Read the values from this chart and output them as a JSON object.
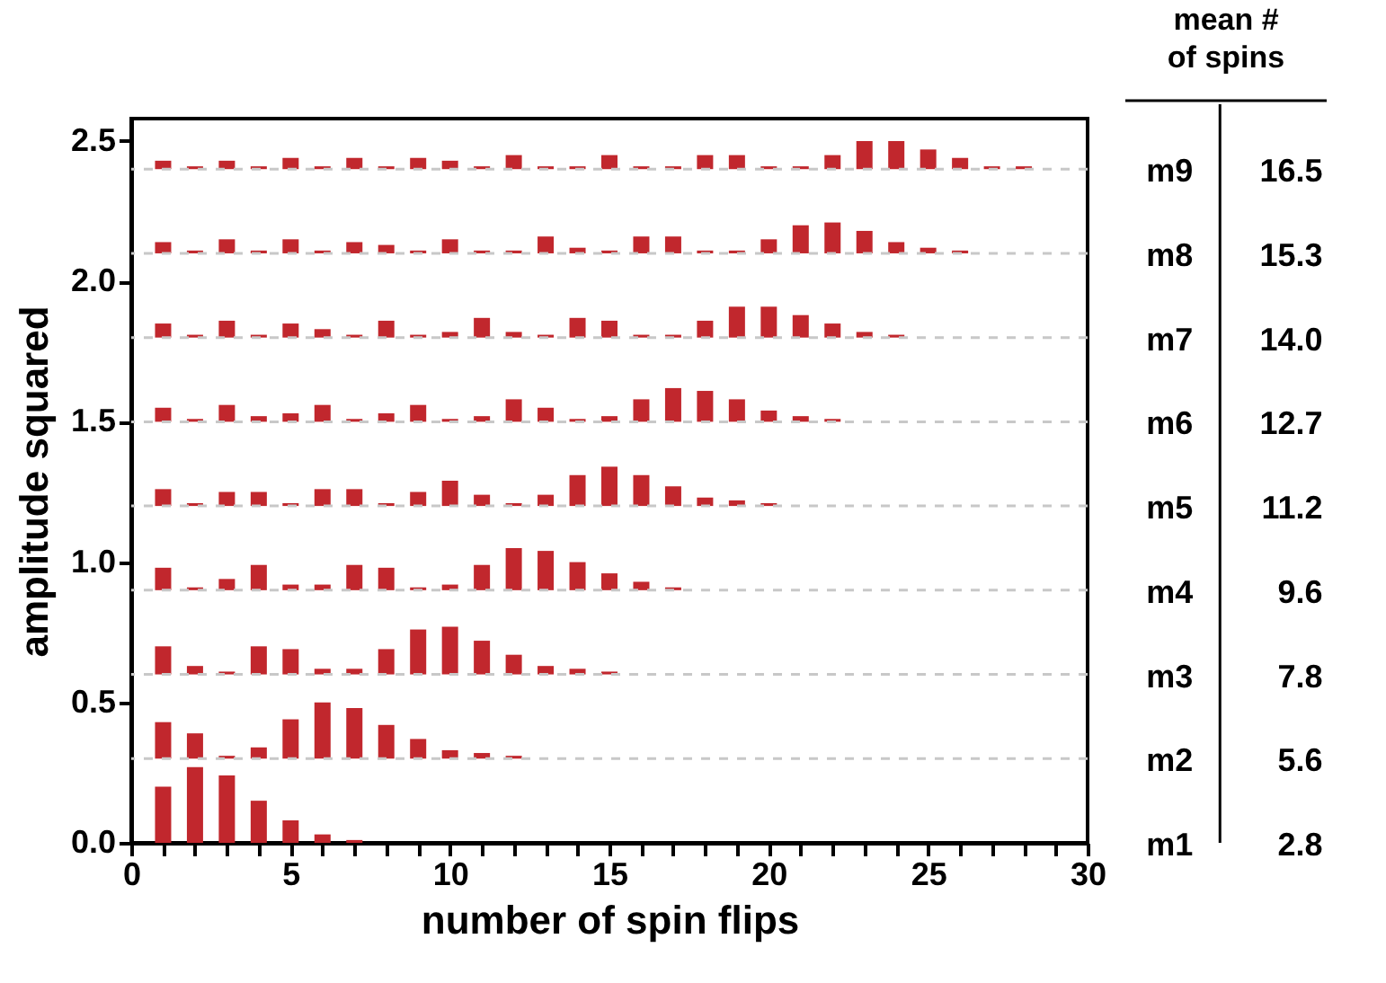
{
  "chart_data": {
    "type": "bar",
    "xlabel": "number of spin flips",
    "ylabel": "amplitude squared",
    "xlim": [
      0,
      30
    ],
    "xticks": [
      0,
      {
        "value": 1,
        "label": null
      },
      {
        "value": 2,
        "label": null
      },
      {
        "value": 3,
        "label": null
      },
      {
        "value": 4,
        "label": null
      },
      5,
      {
        "value": 6,
        "label": null
      },
      {
        "value": 7,
        "label": null
      },
      {
        "value": 8,
        "label": null
      },
      {
        "value": 9,
        "label": null
      },
      10,
      {
        "value": 11,
        "label": null
      },
      {
        "value": 12,
        "label": null
      },
      {
        "value": 13,
        "label": null
      },
      {
        "value": 14,
        "label": null
      },
      15,
      {
        "value": 16,
        "label": null
      },
      {
        "value": 17,
        "label": null
      },
      {
        "value": 18,
        "label": null
      },
      {
        "value": 19,
        "label": null
      },
      20,
      {
        "value": 21,
        "label": null
      },
      {
        "value": 22,
        "label": null
      },
      {
        "value": 23,
        "label": null
      },
      {
        "value": 24,
        "label": null
      },
      25,
      {
        "value": 26,
        "label": null
      },
      {
        "value": 27,
        "label": null
      },
      {
        "value": 28,
        "label": null
      },
      {
        "value": 29,
        "label": null
      },
      30
    ],
    "ylim": [
      0,
      2.58
    ],
    "yticks": [
      {
        "value": 0,
        "label": "0.0"
      },
      0.5,
      {
        "value": 1,
        "label": "1.0"
      },
      1.5,
      {
        "value": 2,
        "label": "2.0"
      },
      2.5
    ],
    "series": [
      {
        "name": "m1",
        "color": "#c1272d",
        "x": [
          1,
          2,
          3,
          4,
          5,
          6,
          7
        ],
        "base": [
          0,
          0,
          0,
          0,
          0,
          0,
          0
        ],
        "values": [
          0.2,
          0.27,
          0.24,
          0.15,
          0.08,
          0.03,
          0.01
        ]
      },
      {
        "name": "m2",
        "color": "#c1272d",
        "x": [
          1,
          2,
          3,
          4,
          5,
          6,
          7,
          8,
          9,
          10,
          11,
          12
        ],
        "base": [
          0.3,
          0.3,
          0.3,
          0.3,
          0.3,
          0.3,
          0.3,
          0.3,
          0.3,
          0.3,
          0.3,
          0.3
        ],
        "values": [
          0.13,
          0.09,
          0.01,
          0.04,
          0.14,
          0.2,
          0.18,
          0.12,
          0.07,
          0.03,
          0.02,
          0.01
        ]
      },
      {
        "name": "m3",
        "color": "#c1272d",
        "x": [
          1,
          2,
          3,
          4,
          5,
          6,
          7,
          8,
          9,
          10,
          11,
          12,
          13,
          14,
          15
        ],
        "base": [
          0.6,
          0.6,
          0.6,
          0.6,
          0.6,
          0.6,
          0.6,
          0.6,
          0.6,
          0.6,
          0.6,
          0.6,
          0.6,
          0.6,
          0.6
        ],
        "values": [
          0.1,
          0.03,
          0.01,
          0.1,
          0.09,
          0.02,
          0.02,
          0.09,
          0.16,
          0.17,
          0.12,
          0.07,
          0.03,
          0.02,
          0.01
        ]
      },
      {
        "name": "m4",
        "color": "#c1272d",
        "x": [
          1,
          2,
          3,
          4,
          5,
          6,
          7,
          8,
          9,
          10,
          11,
          12,
          13,
          14,
          15,
          16,
          17
        ],
        "base": [
          0.9,
          0.9,
          0.9,
          0.9,
          0.9,
          0.9,
          0.9,
          0.9,
          0.9,
          0.9,
          0.9,
          0.9,
          0.9,
          0.9,
          0.9,
          0.9,
          0.9
        ],
        "values": [
          0.08,
          0.01,
          0.04,
          0.09,
          0.02,
          0.02,
          0.09,
          0.08,
          0.01,
          0.02,
          0.09,
          0.15,
          0.14,
          0.1,
          0.06,
          0.03,
          0.01
        ]
      },
      {
        "name": "m5",
        "color": "#c1272d",
        "x": [
          1,
          2,
          3,
          4,
          5,
          6,
          7,
          8,
          9,
          10,
          11,
          12,
          13,
          14,
          15,
          16,
          17,
          18,
          19,
          20
        ],
        "base": [
          1.2,
          1.2,
          1.2,
          1.2,
          1.2,
          1.2,
          1.2,
          1.2,
          1.2,
          1.2,
          1.2,
          1.2,
          1.2,
          1.2,
          1.2,
          1.2,
          1.2,
          1.2,
          1.2,
          1.2
        ],
        "values": [
          0.06,
          0.01,
          0.05,
          0.05,
          0.01,
          0.06,
          0.06,
          0.01,
          0.05,
          0.09,
          0.04,
          0.01,
          0.04,
          0.11,
          0.14,
          0.11,
          0.07,
          0.03,
          0.02,
          0.01
        ]
      },
      {
        "name": "m6",
        "color": "#c1272d",
        "x": [
          1,
          2,
          3,
          4,
          5,
          6,
          7,
          8,
          9,
          10,
          11,
          12,
          13,
          14,
          15,
          16,
          17,
          18,
          19,
          20,
          21,
          22
        ],
        "base": [
          1.5,
          1.5,
          1.5,
          1.5,
          1.5,
          1.5,
          1.5,
          1.5,
          1.5,
          1.5,
          1.5,
          1.5,
          1.5,
          1.5,
          1.5,
          1.5,
          1.5,
          1.5,
          1.5,
          1.5,
          1.5,
          1.5
        ],
        "values": [
          0.05,
          0.01,
          0.06,
          0.02,
          0.03,
          0.06,
          0.01,
          0.03,
          0.06,
          0.01,
          0.02,
          0.08,
          0.05,
          0.01,
          0.02,
          0.08,
          0.12,
          0.11,
          0.08,
          0.04,
          0.02,
          0.01
        ]
      },
      {
        "name": "m7",
        "color": "#c1272d",
        "x": [
          1,
          2,
          3,
          4,
          5,
          6,
          7,
          8,
          9,
          10,
          11,
          12,
          13,
          14,
          15,
          16,
          17,
          18,
          19,
          20,
          21,
          22,
          23,
          24
        ],
        "base": [
          1.8,
          1.8,
          1.8,
          1.8,
          1.8,
          1.8,
          1.8,
          1.8,
          1.8,
          1.8,
          1.8,
          1.8,
          1.8,
          1.8,
          1.8,
          1.8,
          1.8,
          1.8,
          1.8,
          1.8,
          1.8,
          1.8,
          1.8,
          1.8
        ],
        "values": [
          0.05,
          0.01,
          0.06,
          0.01,
          0.05,
          0.03,
          0.01,
          0.06,
          0.01,
          0.02,
          0.07,
          0.02,
          0.01,
          0.07,
          0.06,
          0.01,
          0.01,
          0.06,
          0.11,
          0.11,
          0.08,
          0.05,
          0.02,
          0.01
        ]
      },
      {
        "name": "m8",
        "color": "#c1272d",
        "x": [
          1,
          2,
          3,
          4,
          5,
          6,
          7,
          8,
          9,
          10,
          11,
          12,
          13,
          14,
          15,
          16,
          17,
          18,
          19,
          20,
          21,
          22,
          23,
          24,
          25,
          26
        ],
        "base": [
          2.1,
          2.1,
          2.1,
          2.1,
          2.1,
          2.1,
          2.1,
          2.1,
          2.1,
          2.1,
          2.1,
          2.1,
          2.1,
          2.1,
          2.1,
          2.1,
          2.1,
          2.1,
          2.1,
          2.1,
          2.1,
          2.1,
          2.1,
          2.1,
          2.1,
          2.1
        ],
        "values": [
          0.04,
          0.01,
          0.05,
          0.01,
          0.05,
          0.01,
          0.04,
          0.03,
          0.01,
          0.05,
          0.01,
          0.01,
          0.06,
          0.02,
          0.01,
          0.06,
          0.06,
          0.01,
          0.01,
          0.05,
          0.1,
          0.11,
          0.08,
          0.04,
          0.02,
          0.01
        ]
      },
      {
        "name": "m9",
        "color": "#c1272d",
        "x": [
          1,
          2,
          3,
          4,
          5,
          6,
          7,
          8,
          9,
          10,
          11,
          12,
          13,
          14,
          15,
          16,
          17,
          18,
          19,
          20,
          21,
          22,
          23,
          24,
          25,
          26,
          27,
          28
        ],
        "base": [
          2.4,
          2.4,
          2.4,
          2.4,
          2.4,
          2.4,
          2.4,
          2.4,
          2.4,
          2.4,
          2.4,
          2.4,
          2.4,
          2.4,
          2.4,
          2.4,
          2.4,
          2.4,
          2.4,
          2.4,
          2.4,
          2.4,
          2.4,
          2.4,
          2.4,
          2.4,
          2.4,
          2.4
        ],
        "values": [
          0.03,
          0.01,
          0.03,
          0.01,
          0.04,
          0.01,
          0.04,
          0.01,
          0.04,
          0.03,
          0.01,
          0.05,
          0.01,
          0.01,
          0.05,
          0.01,
          0.01,
          0.05,
          0.05,
          0.01,
          0.01,
          0.05,
          0.1,
          0.1,
          0.07,
          0.04,
          0.01,
          0.01
        ]
      }
    ],
    "ref_lines": [
      {
        "axis": "y",
        "value": 0.3,
        "color": "#c8c8c8",
        "line_style": "dashed"
      },
      {
        "axis": "y",
        "value": 0.6,
        "color": "#c8c8c8",
        "line_style": "dashed"
      },
      {
        "axis": "y",
        "value": 0.9,
        "color": "#c8c8c8",
        "line_style": "dashed"
      },
      {
        "axis": "y",
        "value": 1.2,
        "color": "#c8c8c8",
        "line_style": "dashed"
      },
      {
        "axis": "y",
        "value": 1.5,
        "color": "#c8c8c8",
        "line_style": "dashed"
      },
      {
        "axis": "y",
        "value": 1.8,
        "color": "#c8c8c8",
        "line_style": "dashed"
      },
      {
        "axis": "y",
        "value": 2.1,
        "color": "#c8c8c8",
        "line_style": "dashed"
      },
      {
        "axis": "y",
        "value": 2.4,
        "color": "#c8c8c8",
        "line_style": "dashed"
      }
    ],
    "annotations": [
      "mean #\nof spins",
      "2.8",
      "5.6",
      "7.8",
      "9.6",
      "11.2",
      "12.7",
      "14.0",
      "15.3",
      "16.5"
    ]
  }
}
